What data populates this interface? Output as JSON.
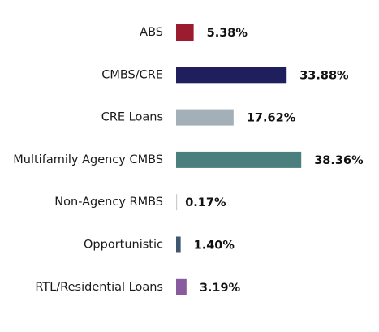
{
  "chart_data": {
    "type": "bar",
    "orientation": "horizontal",
    "categories": [
      "ABS",
      "CMBS/CRE",
      "CRE Loans",
      "Multifamily Agency CMBS",
      "Non-Agency RMBS",
      "Opportunistic",
      "RTL/Residential Loans"
    ],
    "values": [
      5.38,
      33.88,
      17.62,
      38.36,
      0.17,
      1.4,
      3.19
    ],
    "value_labels": [
      "5.38%",
      "33.88%",
      "17.62%",
      "38.36%",
      "0.17%",
      "1.40%",
      "3.19%"
    ],
    "colors": [
      "#9b1c2e",
      "#1f1f5e",
      "#a3b0b8",
      "#4a7f7e",
      "#c9cdd1",
      "#3f5670",
      "#8a5a9e"
    ],
    "unit": "%",
    "grid": false,
    "legend": "none"
  }
}
